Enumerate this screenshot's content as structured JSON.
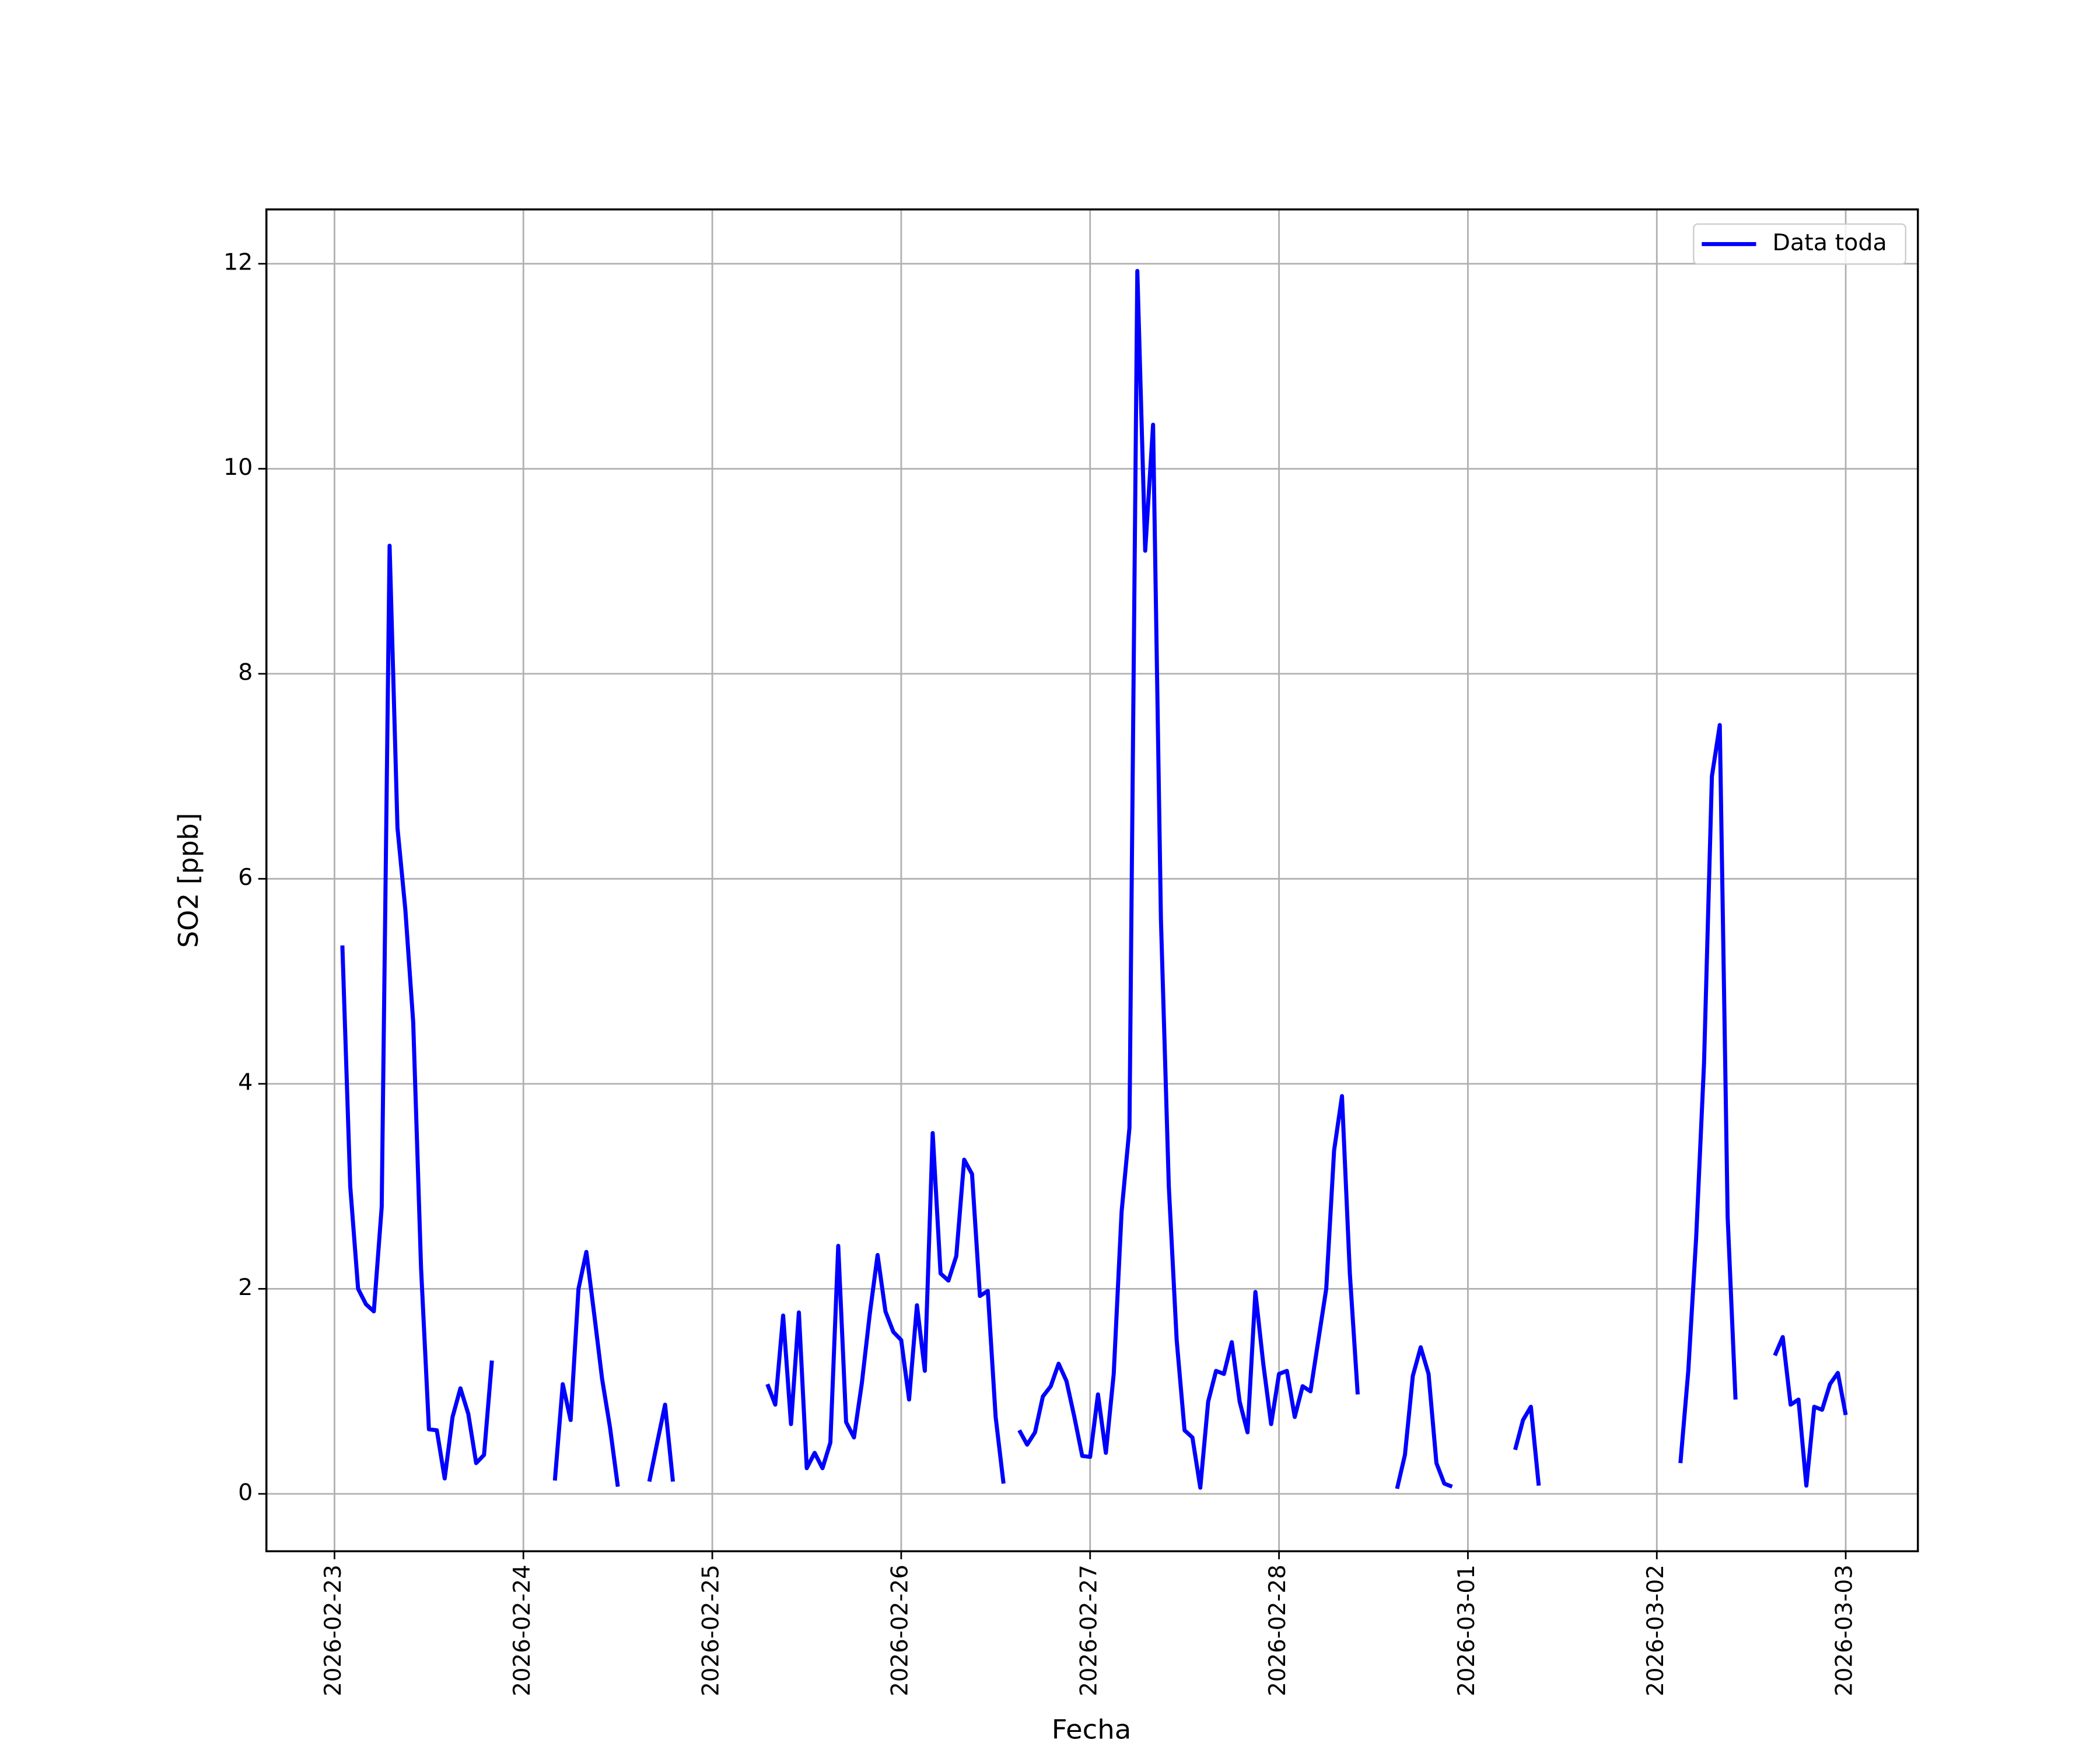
{
  "chart_data": {
    "type": "line",
    "xlabel": "Fecha",
    "ylabel": "SO2 [ppb]",
    "x": [
      "2026-02-23 01:00",
      "2026-02-23 02:00",
      "2026-02-23 03:00",
      "2026-02-23 04:00",
      "2026-02-23 05:00",
      "2026-02-23 06:00",
      "2026-02-23 07:00",
      "2026-02-23 08:00",
      "2026-02-23 09:00",
      "2026-02-23 10:00",
      "2026-02-23 11:00",
      "2026-02-23 12:00",
      "2026-02-23 13:00",
      "2026-02-23 14:00",
      "2026-02-23 15:00",
      "2026-02-23 16:00",
      "2026-02-23 17:00",
      "2026-02-23 18:00",
      "2026-02-23 19:00",
      "2026-02-23 20:00",
      "2026-02-24 00:00",
      "2026-02-24 04:00",
      "2026-02-24 05:00",
      "2026-02-24 06:00",
      "2026-02-24 07:00",
      "2026-02-24 08:00",
      "2026-02-24 09:00",
      "2026-02-24 10:00",
      "2026-02-24 11:00",
      "2026-02-24 12:00",
      "2026-02-24 14:00",
      "2026-02-24 16:00",
      "2026-02-24 17:00",
      "2026-02-24 18:00",
      "2026-02-24 19:00",
      "2026-02-25 00:00",
      "2026-02-25 07:00",
      "2026-02-25 08:00",
      "2026-02-25 09:00",
      "2026-02-25 10:00",
      "2026-02-25 11:00",
      "2026-02-25 12:00",
      "2026-02-25 13:00",
      "2026-02-25 14:00",
      "2026-02-25 15:00",
      "2026-02-25 16:00",
      "2026-02-25 17:00",
      "2026-02-25 18:00",
      "2026-02-25 19:00",
      "2026-02-25 20:00",
      "2026-02-25 21:00",
      "2026-02-25 22:00",
      "2026-02-25 23:00",
      "2026-02-26 00:00",
      "2026-02-26 01:00",
      "2026-02-26 02:00",
      "2026-02-26 03:00",
      "2026-02-26 04:00",
      "2026-02-26 05:00",
      "2026-02-26 06:00",
      "2026-02-26 07:00",
      "2026-02-26 08:00",
      "2026-02-26 09:00",
      "2026-02-26 10:00",
      "2026-02-26 11:00",
      "2026-02-26 12:00",
      "2026-02-26 13:00",
      "2026-02-26 14:00",
      "2026-02-26 15:00",
      "2026-02-26 16:00",
      "2026-02-26 17:00",
      "2026-02-26 18:00",
      "2026-02-26 19:00",
      "2026-02-26 20:00",
      "2026-02-26 21:00",
      "2026-02-26 22:00",
      "2026-02-26 23:00",
      "2026-02-27 00:00",
      "2026-02-27 01:00",
      "2026-02-27 02:00",
      "2026-02-27 03:00",
      "2026-02-27 04:00",
      "2026-02-27 05:00",
      "2026-02-27 06:00",
      "2026-02-27 07:00",
      "2026-02-27 08:00",
      "2026-02-27 09:00",
      "2026-02-27 10:00",
      "2026-02-27 11:00",
      "2026-02-27 12:00",
      "2026-02-27 13:00",
      "2026-02-27 14:00",
      "2026-02-27 15:00",
      "2026-02-27 16:00",
      "2026-02-27 17:00",
      "2026-02-27 18:00",
      "2026-02-27 19:00",
      "2026-02-27 20:00",
      "2026-02-27 21:00",
      "2026-02-27 22:00",
      "2026-02-27 23:00",
      "2026-02-28 00:00",
      "2026-02-28 01:00",
      "2026-02-28 02:00",
      "2026-02-28 03:00",
      "2026-02-28 04:00",
      "2026-02-28 05:00",
      "2026-02-28 06:00",
      "2026-02-28 07:00",
      "2026-02-28 08:00",
      "2026-02-28 09:00",
      "2026-02-28 10:00",
      "2026-02-28 12:00",
      "2026-02-28 15:00",
      "2026-02-28 16:00",
      "2026-02-28 17:00",
      "2026-02-28 18:00",
      "2026-02-28 19:00",
      "2026-02-28 20:00",
      "2026-02-28 21:00",
      "2026-02-28 22:00",
      "2026-03-01 00:00",
      "2026-03-01 06:00",
      "2026-03-01 07:00",
      "2026-03-01 08:00",
      "2026-03-01 09:00",
      "2026-03-01 16:00",
      "2026-03-02 03:00",
      "2026-03-02 04:00",
      "2026-03-02 05:00",
      "2026-03-02 06:00",
      "2026-03-02 07:00",
      "2026-03-02 08:00",
      "2026-03-02 09:00",
      "2026-03-02 10:00",
      "2026-03-02 12:00",
      "2026-03-02 15:00",
      "2026-03-02 16:00",
      "2026-03-02 17:00",
      "2026-03-02 18:00",
      "2026-03-02 19:00",
      "2026-03-02 20:00",
      "2026-03-02 21:00",
      "2026-03-02 22:00",
      "2026-03-02 23:00",
      "2026-03-03 00:00"
    ],
    "series": [
      {
        "name": "Data toda",
        "color": "#0000ff",
        "values": [
          5.35,
          3.0,
          2.0,
          1.85,
          1.78,
          2.8,
          9.25,
          6.5,
          5.7,
          4.6,
          2.2,
          0.63,
          0.62,
          0.15,
          0.75,
          1.03,
          0.78,
          0.3,
          0.38,
          1.3,
          null,
          0.13,
          1.07,
          0.72,
          2.0,
          2.36,
          1.75,
          1.12,
          0.65,
          0.07,
          null,
          0.12,
          0.5,
          0.87,
          0.12,
          null,
          1.07,
          0.87,
          1.74,
          0.68,
          1.77,
          0.25,
          0.4,
          0.25,
          0.5,
          2.42,
          0.7,
          0.55,
          1.08,
          1.75,
          2.33,
          1.78,
          1.58,
          1.5,
          0.92,
          1.84,
          1.2,
          3.52,
          2.15,
          2.08,
          2.32,
          3.26,
          3.12,
          1.93,
          1.98,
          0.75,
          0.1,
          null,
          0.62,
          0.48,
          0.6,
          0.95,
          1.05,
          1.27,
          1.1,
          0.75,
          0.37,
          0.36,
          0.97,
          0.4,
          1.17,
          2.75,
          3.57,
          11.93,
          9.2,
          10.43,
          5.6,
          3.0,
          1.5,
          0.62,
          0.55,
          0.06,
          0.9,
          1.2,
          1.17,
          1.48,
          0.9,
          0.6,
          1.97,
          1.27,
          0.68,
          1.17,
          1.2,
          0.75,
          1.05,
          1.0,
          1.5,
          2.0,
          3.35,
          3.88,
          2.15,
          0.97,
          null,
          0.05,
          0.38,
          1.15,
          1.43,
          1.17,
          0.3,
          0.1,
          0.07,
          null,
          0.43,
          0.72,
          0.85,
          0.08,
          null,
          0.3,
          1.2,
          2.5,
          4.2,
          7.0,
          7.5,
          2.7,
          0.92,
          null,
          1.35,
          1.53,
          0.87,
          0.92,
          0.08,
          0.85,
          0.82,
          1.07,
          1.18,
          0.77
        ]
      }
    ],
    "xlim": [
      "2026-02-22 15:21",
      "2026-03-03 09:10"
    ],
    "xticks": [
      "2026-02-23",
      "2026-02-24",
      "2026-02-25",
      "2026-02-26",
      "2026-02-27",
      "2026-02-28",
      "2026-03-01",
      "2026-03-02",
      "2026-03-03"
    ],
    "ylim": [
      -0.56,
      12.53
    ],
    "yticks": [
      0,
      2,
      4,
      6,
      8,
      10,
      12
    ],
    "grid": true,
    "legend": "upper right"
  }
}
